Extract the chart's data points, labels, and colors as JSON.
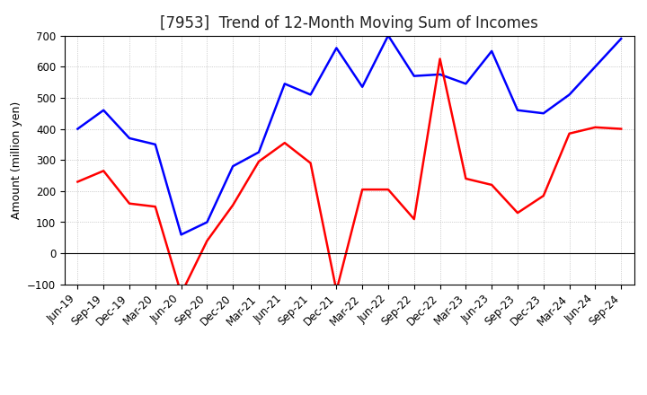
{
  "title": "[7953]  Trend of 12-Month Moving Sum of Incomes",
  "ylabel": "Amount (million yen)",
  "ylim": [
    -100,
    700
  ],
  "yticks": [
    -100,
    0,
    100,
    200,
    300,
    400,
    500,
    600,
    700
  ],
  "x_labels": [
    "Jun-19",
    "Sep-19",
    "Dec-19",
    "Mar-20",
    "Jun-20",
    "Sep-20",
    "Dec-20",
    "Mar-21",
    "Jun-21",
    "Sep-21",
    "Dec-21",
    "Mar-22",
    "Jun-22",
    "Sep-22",
    "Dec-22",
    "Mar-23",
    "Jun-23",
    "Sep-23",
    "Dec-23",
    "Mar-24",
    "Jun-24",
    "Sep-24"
  ],
  "ordinary_income": [
    400,
    460,
    370,
    350,
    60,
    100,
    280,
    325,
    545,
    510,
    660,
    535,
    700,
    570,
    575,
    545,
    650,
    460,
    450,
    510,
    600,
    690
  ],
  "net_income": [
    230,
    265,
    160,
    150,
    -130,
    40,
    155,
    295,
    355,
    290,
    -120,
    205,
    205,
    110,
    625,
    240,
    220,
    130,
    185,
    385,
    405,
    400
  ],
  "ordinary_color": "#0000ff",
  "net_color": "#ff0000",
  "grid_color": "#aaaaaa",
  "bg_color": "#ffffff",
  "title_fontsize": 12,
  "label_fontsize": 9,
  "tick_fontsize": 8.5
}
